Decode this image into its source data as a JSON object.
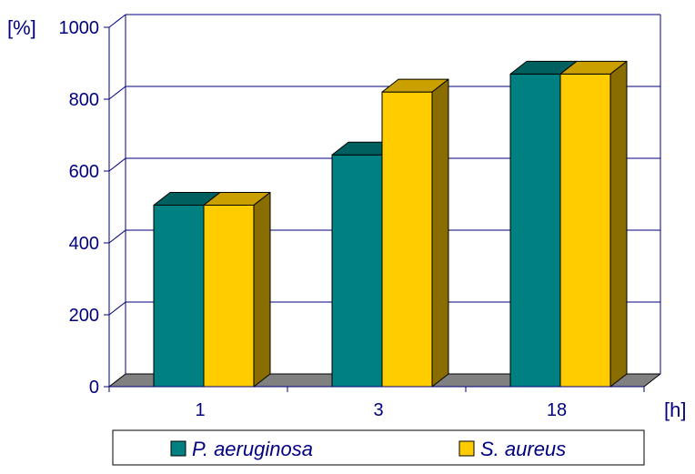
{
  "chart_data": {
    "type": "bar",
    "categories": [
      "1",
      "3",
      "18"
    ],
    "series": [
      {
        "name": "P. aeruginosa",
        "values": [
          505,
          645,
          870
        ]
      },
      {
        "name": "S. aureus",
        "values": [
          505,
          820,
          870
        ]
      }
    ],
    "ylabel": "[%]",
    "xlabel": "[h]",
    "ylim": [
      0,
      1000
    ],
    "yticks": [
      0,
      200,
      400,
      600,
      800,
      1000
    ],
    "grid": true,
    "three_d": true,
    "legend": "bottom"
  },
  "colors": {
    "axis": "#000080",
    "gridline": "#000080",
    "floor": "#808080",
    "series": [
      {
        "front": "#008080",
        "top": "#005f5f",
        "side": "#004848"
      },
      {
        "front": "#ffcc00",
        "top": "#c9a000",
        "side": "#8a6d00"
      }
    ]
  }
}
